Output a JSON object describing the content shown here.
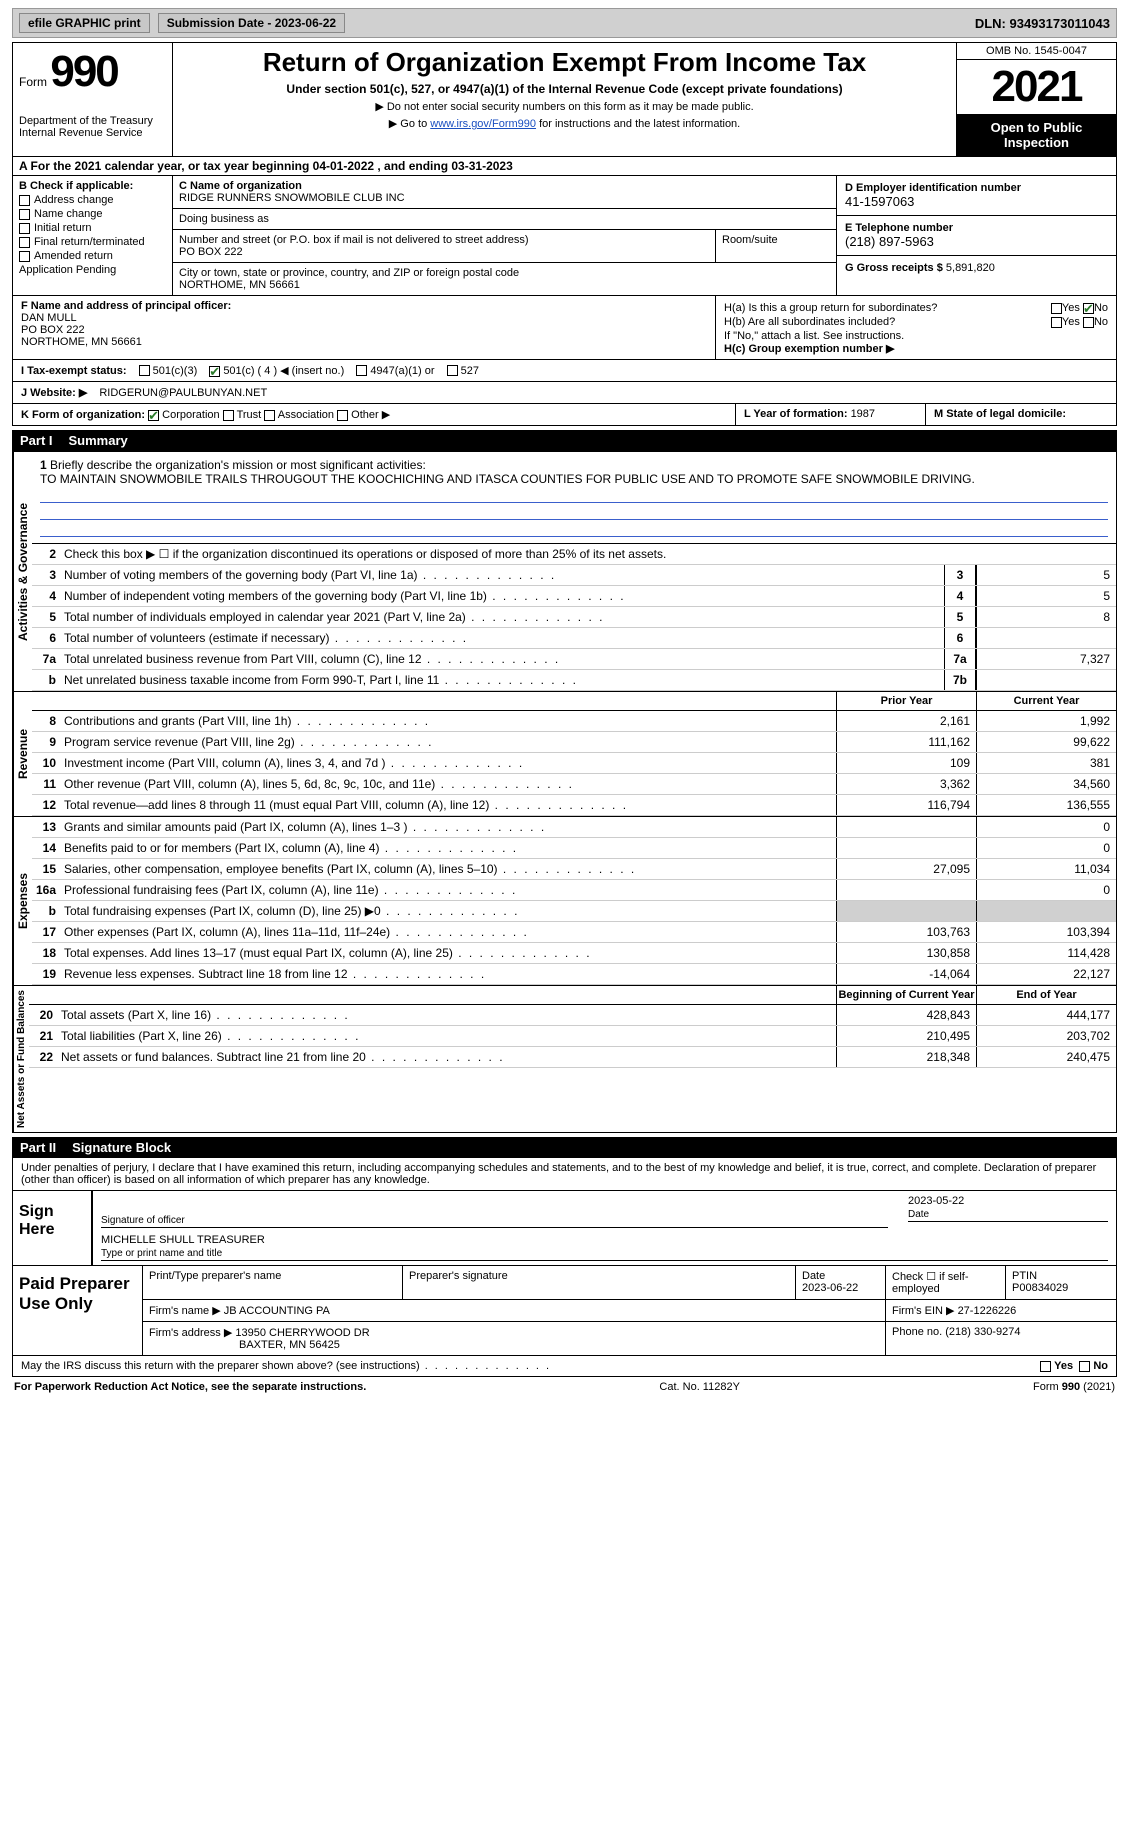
{
  "topbar": {
    "efile": "efile GRAPHIC print",
    "submission_label": "Submission Date - 2023-06-22",
    "dln_label": "DLN: 93493173011043"
  },
  "header": {
    "form_word": "Form",
    "form_num": "990",
    "dept": "Department of the Treasury",
    "irs": "Internal Revenue Service",
    "title": "Return of Organization Exempt From Income Tax",
    "subtitle": "Under section 501(c), 527, or 4947(a)(1) of the Internal Revenue Code (except private foundations)",
    "note1": "▶ Do not enter social security numbers on this form as it may be made public.",
    "note2_pre": "▶ Go to ",
    "note2_link": "www.irs.gov/Form990",
    "note2_post": " for instructions and the latest information.",
    "omb": "OMB No. 1545-0047",
    "year": "2021",
    "open": "Open to Public Inspection"
  },
  "section_a": "A For the 2021 calendar year, or tax year beginning 04-01-2022   , and ending 03-31-2023",
  "col_b": {
    "label": "B Check if applicable:",
    "items": [
      "Address change",
      "Name change",
      "Initial return",
      "Final return/terminated",
      "Amended return",
      "Application Pending"
    ]
  },
  "org": {
    "name_lbl": "C Name of organization",
    "name": "RIDGE RUNNERS SNOWMOBILE CLUB INC",
    "dba_lbl": "Doing business as",
    "dba": "",
    "street_lbl": "Number and street (or P.O. box if mail is not delivered to street address)",
    "suite_lbl": "Room/suite",
    "street": "PO BOX 222",
    "city_lbl": "City or town, state or province, country, and ZIP or foreign postal code",
    "city": "NORTHOME, MN  56661"
  },
  "right": {
    "ein_lbl": "D Employer identification number",
    "ein": "41-1597063",
    "phone_lbl": "E Telephone number",
    "phone": "(218) 897-5963",
    "gross_lbl": "G Gross receipts $ ",
    "gross": "5,891,820"
  },
  "officer": {
    "lbl": "F  Name and address of principal officer:",
    "name": "DAN MULL",
    "street": "PO BOX 222",
    "city": "NORTHOME, MN  56661"
  },
  "h": {
    "a": "H(a)  Is this a group return for subordinates?",
    "b": "H(b)  Are all subordinates included?",
    "b_note": "If \"No,\" attach a list. See instructions.",
    "c": "H(c)  Group exemption number ▶",
    "yes": "Yes",
    "no": "No"
  },
  "tax_status": {
    "lbl": "I  Tax-exempt status:",
    "c3": "501(c)(3)",
    "c": "501(c) ( 4 ) ◀ (insert no.)",
    "a1": "4947(a)(1) or",
    "s527": "527"
  },
  "website": {
    "lbl": "J  Website: ▶",
    "val": "RIDGERUN@PAULBUNYAN.NET"
  },
  "row_k": {
    "lbl": "K Form of organization:",
    "corp": "Corporation",
    "trust": "Trust",
    "assoc": "Association",
    "other": "Other ▶"
  },
  "row_l": {
    "lbl": "L Year of formation: ",
    "val": "1987"
  },
  "row_m": {
    "lbl": "M State of legal domicile:",
    "val": ""
  },
  "part1": {
    "part": "Part I",
    "title": "Summary",
    "labels": {
      "ag": "Activities & Governance",
      "rev": "Revenue",
      "exp": "Expenses",
      "net": "Net Assets or Fund Balances"
    },
    "l1_lbl": "Briefly describe the organization's mission or most significant activities:",
    "l1_text": "TO MAINTAIN SNOWMOBILE TRAILS THROUGOUT THE KOOCHICHING AND ITASCA COUNTIES FOR PUBLIC USE AND TO PROMOTE SAFE SNOWMOBILE DRIVING.",
    "l2": "Check this box ▶ ☐ if the organization discontinued its operations or disposed of more than 25% of its net assets.",
    "col_prior": "Prior Year",
    "col_current": "Current Year",
    "col_begin": "Beginning of Current Year",
    "col_end": "End of Year",
    "lines_ag": [
      {
        "n": "3",
        "d": "Number of voting members of the governing body (Part VI, line 1a)",
        "box": "3",
        "v": "5"
      },
      {
        "n": "4",
        "d": "Number of independent voting members of the governing body (Part VI, line 1b)",
        "box": "4",
        "v": "5"
      },
      {
        "n": "5",
        "d": "Total number of individuals employed in calendar year 2021 (Part V, line 2a)",
        "box": "5",
        "v": "8"
      },
      {
        "n": "6",
        "d": "Total number of volunteers (estimate if necessary)",
        "box": "6",
        "v": ""
      },
      {
        "n": "7a",
        "d": "Total unrelated business revenue from Part VIII, column (C), line 12",
        "box": "7a",
        "v": "7,327"
      },
      {
        "n": "b",
        "d": "Net unrelated business taxable income from Form 990-T, Part I, line 11",
        "box": "7b",
        "v": ""
      }
    ],
    "lines_rev": [
      {
        "n": "8",
        "d": "Contributions and grants (Part VIII, line 1h)",
        "p": "2,161",
        "c": "1,992"
      },
      {
        "n": "9",
        "d": "Program service revenue (Part VIII, line 2g)",
        "p": "111,162",
        "c": "99,622"
      },
      {
        "n": "10",
        "d": "Investment income (Part VIII, column (A), lines 3, 4, and 7d )",
        "p": "109",
        "c": "381"
      },
      {
        "n": "11",
        "d": "Other revenue (Part VIII, column (A), lines 5, 6d, 8c, 9c, 10c, and 11e)",
        "p": "3,362",
        "c": "34,560"
      },
      {
        "n": "12",
        "d": "Total revenue—add lines 8 through 11 (must equal Part VIII, column (A), line 12)",
        "p": "116,794",
        "c": "136,555"
      }
    ],
    "lines_exp": [
      {
        "n": "13",
        "d": "Grants and similar amounts paid (Part IX, column (A), lines 1–3 )",
        "p": "",
        "c": "0"
      },
      {
        "n": "14",
        "d": "Benefits paid to or for members (Part IX, column (A), line 4)",
        "p": "",
        "c": "0"
      },
      {
        "n": "15",
        "d": "Salaries, other compensation, employee benefits (Part IX, column (A), lines 5–10)",
        "p": "27,095",
        "c": "11,034"
      },
      {
        "n": "16a",
        "d": "Professional fundraising fees (Part IX, column (A), line 11e)",
        "p": "",
        "c": "0"
      },
      {
        "n": "b",
        "d": "Total fundraising expenses (Part IX, column (D), line 25) ▶0",
        "p": "grey",
        "c": "grey"
      },
      {
        "n": "17",
        "d": "Other expenses (Part IX, column (A), lines 11a–11d, 11f–24e)",
        "p": "103,763",
        "c": "103,394"
      },
      {
        "n": "18",
        "d": "Total expenses. Add lines 13–17 (must equal Part IX, column (A), line 25)",
        "p": "130,858",
        "c": "114,428"
      },
      {
        "n": "19",
        "d": "Revenue less expenses. Subtract line 18 from line 12",
        "p": "-14,064",
        "c": "22,127"
      }
    ],
    "lines_net": [
      {
        "n": "20",
        "d": "Total assets (Part X, line 16)",
        "p": "428,843",
        "c": "444,177"
      },
      {
        "n": "21",
        "d": "Total liabilities (Part X, line 26)",
        "p": "210,495",
        "c": "203,702"
      },
      {
        "n": "22",
        "d": "Net assets or fund balances. Subtract line 21 from line 20",
        "p": "218,348",
        "c": "240,475"
      }
    ]
  },
  "part2": {
    "part": "Part II",
    "title": "Signature Block",
    "penalty": "Under penalties of perjury, I declare that I have examined this return, including accompanying schedules and statements, and to the best of my knowledge and belief, it is true, correct, and complete. Declaration of preparer (other than officer) is based on all information of which preparer has any knowledge.",
    "sign_here": "Sign Here",
    "sig_of_officer": "Signature of officer",
    "sig_date": "2023-05-22",
    "date_lbl": "Date",
    "typed_name": "MICHELLE SHULL TREASURER",
    "typed_lbl": "Type or print name and title",
    "paid": "Paid Preparer Use Only",
    "prep_name_lbl": "Print/Type preparer's name",
    "prep_sig_lbl": "Preparer's signature",
    "prep_date_lbl": "Date",
    "prep_date": "2023-06-22",
    "check_self": "Check ☐ if self-employed",
    "ptin_lbl": "PTIN",
    "ptin": "P00834029",
    "firm_name_lbl": "Firm's name    ▶",
    "firm_name": "JB ACCOUNTING PA",
    "firm_ein_lbl": "Firm's EIN ▶",
    "firm_ein": "27-1226226",
    "firm_addr_lbl": "Firm's address ▶",
    "firm_addr1": "13950 CHERRYWOOD DR",
    "firm_addr2": "BAXTER, MN  56425",
    "firm_phone_lbl": "Phone no. ",
    "firm_phone": "(218) 330-9274"
  },
  "discuss": {
    "q": "May the IRS discuss this return with the preparer shown above? (see instructions)",
    "yes": "Yes",
    "no": "No"
  },
  "footer": {
    "left": "For Paperwork Reduction Act Notice, see the separate instructions.",
    "mid": "Cat. No. 11282Y",
    "right": "Form 990 (2021)"
  }
}
